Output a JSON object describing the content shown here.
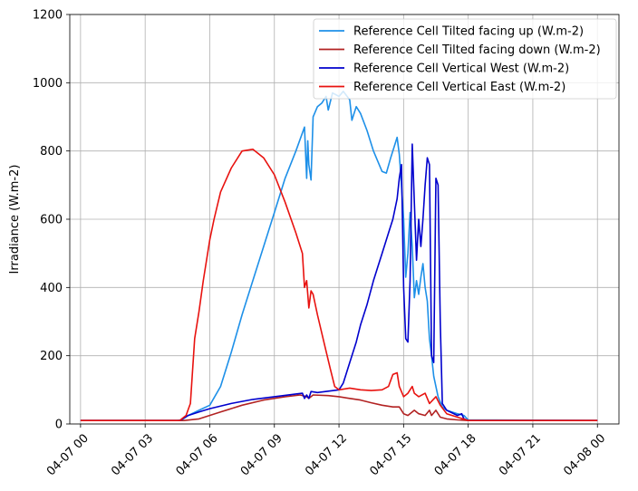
{
  "chart_data": {
    "type": "line",
    "title": "",
    "xlabel": "",
    "ylabel": "Irradiance (W.m-2)",
    "x_ticks": [
      "04-07 00",
      "04-07 03",
      "04-07 06",
      "04-07 09",
      "04-07 12",
      "04-07 15",
      "04-07 18",
      "04-07 21",
      "04-08 00"
    ],
    "xlim_hours": [
      -0.5,
      25.0
    ],
    "y_ticks": [
      "0",
      "200",
      "400",
      "600",
      "800",
      "1000",
      "1200"
    ],
    "ylim": [
      0,
      1200
    ],
    "grid": true,
    "legend_position": "top-right",
    "series": [
      {
        "name": "Reference Cell Tilted facing up (W.m-2)",
        "color": "#1e90e8",
        "points": [
          [
            0,
            10
          ],
          [
            4.5,
            10
          ],
          [
            4.7,
            12
          ],
          [
            5.0,
            25
          ],
          [
            5.5,
            40
          ],
          [
            6.0,
            55
          ],
          [
            6.5,
            110
          ],
          [
            7.0,
            210
          ],
          [
            7.5,
            320
          ],
          [
            8.0,
            420
          ],
          [
            8.5,
            520
          ],
          [
            9.0,
            620
          ],
          [
            9.5,
            720
          ],
          [
            10.0,
            800
          ],
          [
            10.4,
            870
          ],
          [
            10.5,
            720
          ],
          [
            10.55,
            830
          ],
          [
            10.6,
            760
          ],
          [
            10.7,
            715
          ],
          [
            10.8,
            900
          ],
          [
            11.0,
            930
          ],
          [
            11.2,
            940
          ],
          [
            11.4,
            960
          ],
          [
            11.5,
            920
          ],
          [
            11.7,
            970
          ],
          [
            12.0,
            960
          ],
          [
            12.2,
            975
          ],
          [
            12.5,
            950
          ],
          [
            12.6,
            890
          ],
          [
            12.8,
            930
          ],
          [
            13.0,
            910
          ],
          [
            13.3,
            860
          ],
          [
            13.6,
            800
          ],
          [
            14.0,
            740
          ],
          [
            14.2,
            735
          ],
          [
            14.4,
            780
          ],
          [
            14.7,
            840
          ],
          [
            14.8,
            790
          ],
          [
            14.9,
            700
          ],
          [
            15.0,
            600
          ],
          [
            15.1,
            430
          ],
          [
            15.2,
            500
          ],
          [
            15.3,
            620
          ],
          [
            15.4,
            520
          ],
          [
            15.5,
            370
          ],
          [
            15.6,
            420
          ],
          [
            15.7,
            380
          ],
          [
            15.8,
            430
          ],
          [
            15.9,
            470
          ],
          [
            16.0,
            400
          ],
          [
            16.1,
            360
          ],
          [
            16.2,
            250
          ],
          [
            16.3,
            200
          ],
          [
            16.4,
            140
          ],
          [
            16.6,
            80
          ],
          [
            16.8,
            50
          ],
          [
            17.0,
            40
          ],
          [
            17.5,
            30
          ],
          [
            17.8,
            25
          ],
          [
            18.0,
            12
          ],
          [
            24.0,
            10
          ]
        ]
      },
      {
        "name": "Reference Cell Tilted facing down (W.m-2)",
        "color": "#b22222",
        "points": [
          [
            0,
            10
          ],
          [
            4.8,
            10
          ],
          [
            5.5,
            15
          ],
          [
            6.5,
            35
          ],
          [
            7.5,
            55
          ],
          [
            8.5,
            70
          ],
          [
            9.5,
            80
          ],
          [
            10.2,
            85
          ],
          [
            10.5,
            80
          ],
          [
            10.6,
            75
          ],
          [
            10.8,
            85
          ],
          [
            11.5,
            83
          ],
          [
            12.0,
            80
          ],
          [
            12.5,
            75
          ],
          [
            13.0,
            70
          ],
          [
            13.5,
            62
          ],
          [
            14.0,
            55
          ],
          [
            14.5,
            50
          ],
          [
            14.8,
            50
          ],
          [
            15.0,
            30
          ],
          [
            15.2,
            25
          ],
          [
            15.5,
            40
          ],
          [
            15.7,
            30
          ],
          [
            16.0,
            25
          ],
          [
            16.2,
            40
          ],
          [
            16.3,
            25
          ],
          [
            16.5,
            40
          ],
          [
            16.7,
            20
          ],
          [
            17.0,
            15
          ],
          [
            17.5,
            12
          ],
          [
            18.0,
            10
          ],
          [
            24.0,
            10
          ]
        ]
      },
      {
        "name": "Reference Cell Vertical West (W.m-2)",
        "color": "#0000cd",
        "points": [
          [
            0,
            10
          ],
          [
            4.6,
            10
          ],
          [
            5.0,
            25
          ],
          [
            5.5,
            35
          ],
          [
            6.0,
            45
          ],
          [
            7.0,
            60
          ],
          [
            8.0,
            72
          ],
          [
            9.0,
            80
          ],
          [
            10.0,
            88
          ],
          [
            10.3,
            90
          ],
          [
            10.4,
            75
          ],
          [
            10.5,
            85
          ],
          [
            10.6,
            75
          ],
          [
            10.7,
            95
          ],
          [
            11.0,
            92
          ],
          [
            11.5,
            96
          ],
          [
            12.0,
            100
          ],
          [
            12.2,
            120
          ],
          [
            12.5,
            180
          ],
          [
            12.8,
            240
          ],
          [
            13.0,
            290
          ],
          [
            13.3,
            350
          ],
          [
            13.6,
            420
          ],
          [
            14.0,
            500
          ],
          [
            14.3,
            560
          ],
          [
            14.5,
            600
          ],
          [
            14.7,
            660
          ],
          [
            14.8,
            720
          ],
          [
            14.9,
            760
          ],
          [
            15.0,
            400
          ],
          [
            15.1,
            250
          ],
          [
            15.2,
            240
          ],
          [
            15.3,
            420
          ],
          [
            15.4,
            820
          ],
          [
            15.5,
            650
          ],
          [
            15.6,
            480
          ],
          [
            15.7,
            600
          ],
          [
            15.8,
            520
          ],
          [
            15.9,
            600
          ],
          [
            16.0,
            700
          ],
          [
            16.1,
            780
          ],
          [
            16.2,
            760
          ],
          [
            16.3,
            200
          ],
          [
            16.4,
            180
          ],
          [
            16.5,
            720
          ],
          [
            16.6,
            700
          ],
          [
            16.7,
            300
          ],
          [
            16.8,
            60
          ],
          [
            17.0,
            40
          ],
          [
            17.5,
            25
          ],
          [
            17.7,
            30
          ],
          [
            17.8,
            15
          ],
          [
            18.0,
            10
          ],
          [
            24.0,
            10
          ]
        ]
      },
      {
        "name": "Reference Cell Vertical East (W.m-2)",
        "color": "#e8120f",
        "points": [
          [
            0,
            10
          ],
          [
            4.6,
            10
          ],
          [
            4.9,
            25
          ],
          [
            5.1,
            60
          ],
          [
            5.3,
            250
          ],
          [
            5.5,
            330
          ],
          [
            5.7,
            420
          ],
          [
            6.0,
            540
          ],
          [
            6.2,
            600
          ],
          [
            6.5,
            680
          ],
          [
            7.0,
            750
          ],
          [
            7.5,
            800
          ],
          [
            8.0,
            805
          ],
          [
            8.5,
            780
          ],
          [
            9.0,
            730
          ],
          [
            9.5,
            650
          ],
          [
            10.0,
            560
          ],
          [
            10.3,
            500
          ],
          [
            10.4,
            400
          ],
          [
            10.5,
            420
          ],
          [
            10.6,
            340
          ],
          [
            10.7,
            390
          ],
          [
            10.8,
            380
          ],
          [
            11.0,
            320
          ],
          [
            11.3,
            240
          ],
          [
            11.6,
            160
          ],
          [
            11.8,
            110
          ],
          [
            12.0,
            100
          ],
          [
            12.5,
            105
          ],
          [
            13.0,
            100
          ],
          [
            13.5,
            98
          ],
          [
            14.0,
            100
          ],
          [
            14.3,
            110
          ],
          [
            14.5,
            145
          ],
          [
            14.7,
            150
          ],
          [
            14.8,
            110
          ],
          [
            15.0,
            80
          ],
          [
            15.2,
            90
          ],
          [
            15.4,
            110
          ],
          [
            15.5,
            90
          ],
          [
            15.7,
            80
          ],
          [
            16.0,
            90
          ],
          [
            16.2,
            60
          ],
          [
            16.5,
            80
          ],
          [
            16.7,
            55
          ],
          [
            17.0,
            30
          ],
          [
            17.5,
            20
          ],
          [
            18.0,
            10
          ],
          [
            24.0,
            10
          ]
        ]
      }
    ]
  }
}
